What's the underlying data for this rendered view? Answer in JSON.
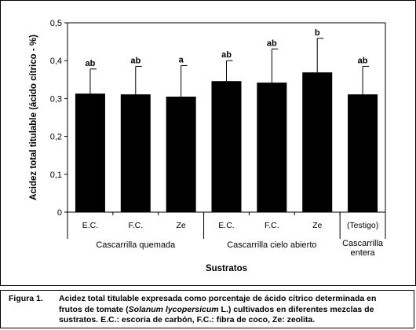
{
  "chart_data": {
    "type": "bar",
    "ylabel": "Acidez total titulable (ácido cítrico - %)",
    "xlabel": "Sustratos",
    "ylim": [
      0,
      0.5
    ],
    "yticks": [
      "0",
      "0,1",
      "0,2",
      "0,3",
      "0,4",
      "0,5"
    ],
    "bars": [
      {
        "category": "E.C.",
        "value": 0.313,
        "error": 0.065,
        "letter": "ab"
      },
      {
        "category": "F.C.",
        "value": 0.311,
        "error": 0.074,
        "letter": "ab"
      },
      {
        "category": "Ze",
        "value": 0.305,
        "error": 0.082,
        "letter": "a"
      },
      {
        "category": "E.C.",
        "value": 0.346,
        "error": 0.054,
        "letter": "ab"
      },
      {
        "category": "F.C.",
        "value": 0.342,
        "error": 0.089,
        "letter": "ab"
      },
      {
        "category": "Ze",
        "value": 0.369,
        "error": 0.09,
        "letter": "b"
      },
      {
        "category": "(Testigo)",
        "value": 0.311,
        "error": 0.074,
        "letter": "ab"
      }
    ],
    "groups": [
      {
        "label": "Cascarrilla quemada",
        "count": 3
      },
      {
        "label": "Cascarrilla cielo abierto",
        "count": 3
      },
      {
        "label": "Cascarrilla entera",
        "count": 1
      }
    ],
    "bar_color": "#000000"
  },
  "caption": {
    "label": "Figura 1.",
    "line1": "Acidez total titulable expresada como porcentaje de ácido cítrico determinada en",
    "line2_a": "frutos de tomate (",
    "line2_species": "Solanum lycopersicum",
    "line2_b": " L.) cultivados en diferentes mezclas de",
    "line3": "sustratos. E.C.: escoria de carbón, F.C.: fibra de coco, Ze: zeolita."
  }
}
